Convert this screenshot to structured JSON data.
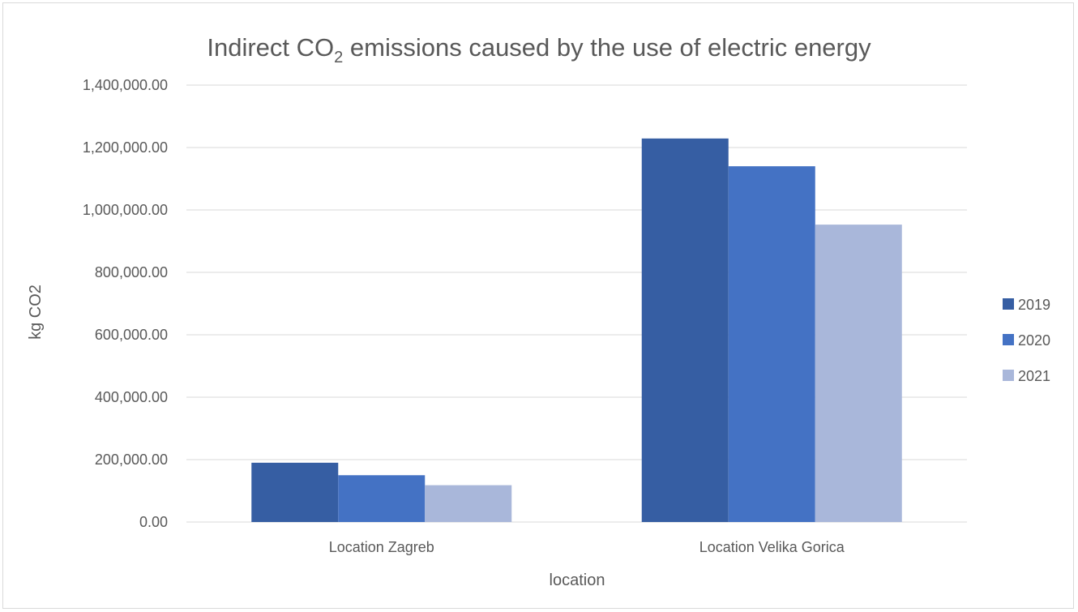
{
  "chart_data": {
    "type": "bar",
    "title": {
      "prefix": "Indirect CO",
      "subscript": "2",
      "suffix": " emissions caused by the use of electric energy"
    },
    "xlabel": "location",
    "ylabel": "kg CO2",
    "categories": [
      "Location Zagreb",
      "Location Velika Gorica"
    ],
    "series": [
      {
        "name": "2019",
        "color": "#365ea3",
        "values": [
          190000,
          1229000
        ]
      },
      {
        "name": "2020",
        "color": "#4472c4",
        "values": [
          150000,
          1140000
        ]
      },
      {
        "name": "2021",
        "color": "#a9b7da",
        "values": [
          118000,
          953000
        ]
      }
    ],
    "ylim": [
      0,
      1400000
    ],
    "yticks": [
      0,
      200000,
      400000,
      600000,
      800000,
      1000000,
      1200000,
      1400000
    ],
    "ytick_labels": [
      "0.00",
      "200,000.00",
      "400,000.00",
      "600,000.00",
      "800,000.00",
      "1,000,000.00",
      "1,200,000.00",
      "1,400,000.00"
    ],
    "grid": true,
    "legend_position": "right"
  }
}
